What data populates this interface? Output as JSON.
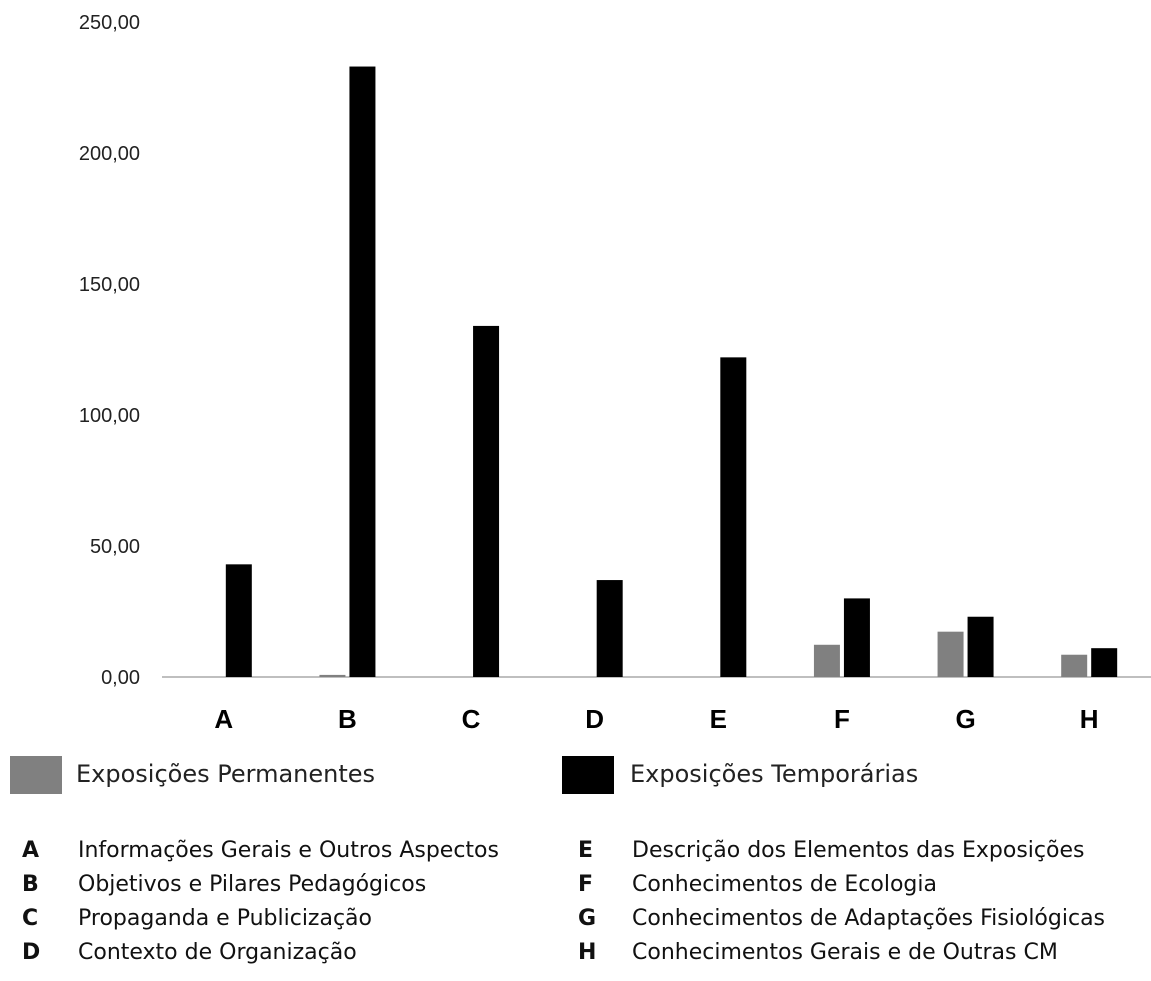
{
  "chart_data": {
    "type": "bar",
    "categories": [
      "A",
      "B",
      "C",
      "D",
      "E",
      "F",
      "G",
      "H"
    ],
    "series": [
      {
        "name": "Exposições Permanentes",
        "color": "#808080",
        "values": [
          0,
          0.8,
          0,
          0,
          0,
          12.3,
          17.3,
          8.5
        ]
      },
      {
        "name": "Exposições Temporárias",
        "color": "#000000",
        "values": [
          43,
          233,
          134,
          37,
          122,
          30,
          23,
          11
        ]
      }
    ],
    "ylim": [
      0,
      250
    ],
    "yticks": [
      "0,00",
      "50,00",
      "100,00",
      "150,00",
      "200,00",
      "250,00"
    ],
    "grid": false,
    "legend_position": "bottom"
  },
  "legend": {
    "permanent_label": "Exposições Permanentes",
    "temporary_label": "Exposições Temporárias"
  },
  "key": [
    {
      "letter": "A",
      "text": "Informações Gerais e Outros Aspectos"
    },
    {
      "letter": "B",
      "text": "Objetivos e Pilares Pedagógicos"
    },
    {
      "letter": "C",
      "text": "Propaganda e Publicização"
    },
    {
      "letter": "D",
      "text": "Contexto de Organização"
    },
    {
      "letter": "E",
      "text": "Descrição dos Elementos das Exposições"
    },
    {
      "letter": "F",
      "text": "Conhecimentos de Ecologia"
    },
    {
      "letter": "G",
      "text": "Conhecimentos de Adaptações Fisiológicas"
    },
    {
      "letter": "H",
      "text": "Conhecimentos Gerais e de Outras CM"
    }
  ]
}
